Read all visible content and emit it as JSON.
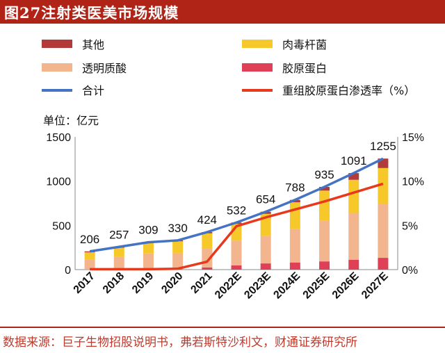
{
  "header": {
    "title": "图27注射类医美市场规模"
  },
  "footer": {
    "source": "数据来源：巨子生物招股说明书，弗若斯特沙利文，财通证券研究所"
  },
  "colors": {
    "brand": "#b02418",
    "other": "#b23a3a",
    "botox": "#f7c82a",
    "hyaluronic": "#f3b58e",
    "collagen": "#e04057",
    "total": "#4472c4",
    "penetration": "#e8391d"
  },
  "chart_data": {
    "type": "bar",
    "stacked": true,
    "unit_label": "单位：亿元",
    "categories": [
      "2017",
      "2018",
      "2019",
      "2020",
      "2021",
      "2022E",
      "2023E",
      "2024E",
      "2025E",
      "2026E",
      "2027E"
    ],
    "series": [
      {
        "name": "胶原蛋白",
        "axis": "left",
        "values": [
          1,
          2,
          3,
          4,
          25,
          47,
          70,
          81,
          93,
          110,
          133
        ]
      },
      {
        "name": "透明质酸",
        "axis": "left",
        "values": [
          110,
          145,
          180,
          180,
          210,
          280,
          310,
          380,
          460,
          530,
          605
        ]
      },
      {
        "name": "肉毒杆菌",
        "axis": "left",
        "values": [
          85,
          100,
          116,
          136,
          175,
          190,
          250,
          300,
          340,
          375,
          410
        ]
      },
      {
        "name": "其他",
        "axis": "left",
        "values": [
          10,
          10,
          10,
          10,
          14,
          15,
          24,
          27,
          42,
          76,
          107
        ]
      },
      {
        "name": "合计",
        "type": "line",
        "axis": "left",
        "values": [
          206,
          257,
          309,
          330,
          424,
          532,
          654,
          788,
          935,
          1091,
          1255
        ]
      },
      {
        "name": "重组胶原蛋白渗透率（%）",
        "type": "line",
        "axis": "right",
        "values": [
          0.05,
          0.05,
          0.05,
          0.1,
          0.9,
          4.9,
          5.9,
          6.8,
          7.7,
          8.7,
          9.7
        ]
      }
    ],
    "data_labels": [
      "206",
      "257",
      "309",
      "330",
      "424",
      "532",
      "654",
      "788",
      "935",
      "1091",
      "1255"
    ],
    "y_left": {
      "min": 0,
      "max": 1500,
      "ticks": [
        0,
        500,
        1000,
        1500
      ],
      "tick_labels": [
        "0",
        "500",
        "1000",
        "1500"
      ]
    },
    "y_right": {
      "min": 0,
      "max": 15,
      "ticks": [
        0,
        5,
        10,
        15
      ],
      "tick_labels": [
        "0%",
        "5%",
        "10%",
        "15%"
      ]
    },
    "legend": [
      {
        "name": "其他",
        "kind": "box",
        "color": "#b23a3a"
      },
      {
        "name": "肉毒杆菌",
        "kind": "box",
        "color": "#f7c82a"
      },
      {
        "name": "透明质酸",
        "kind": "box",
        "color": "#f3b58e"
      },
      {
        "name": "胶原蛋白",
        "kind": "box",
        "color": "#e04057"
      },
      {
        "name": "合计",
        "kind": "line",
        "color": "#4472c4"
      },
      {
        "name": "重组胶原蛋白渗透率（%）",
        "kind": "line",
        "color": "#e8391d"
      }
    ],
    "legend_position": "top",
    "grid": false
  }
}
